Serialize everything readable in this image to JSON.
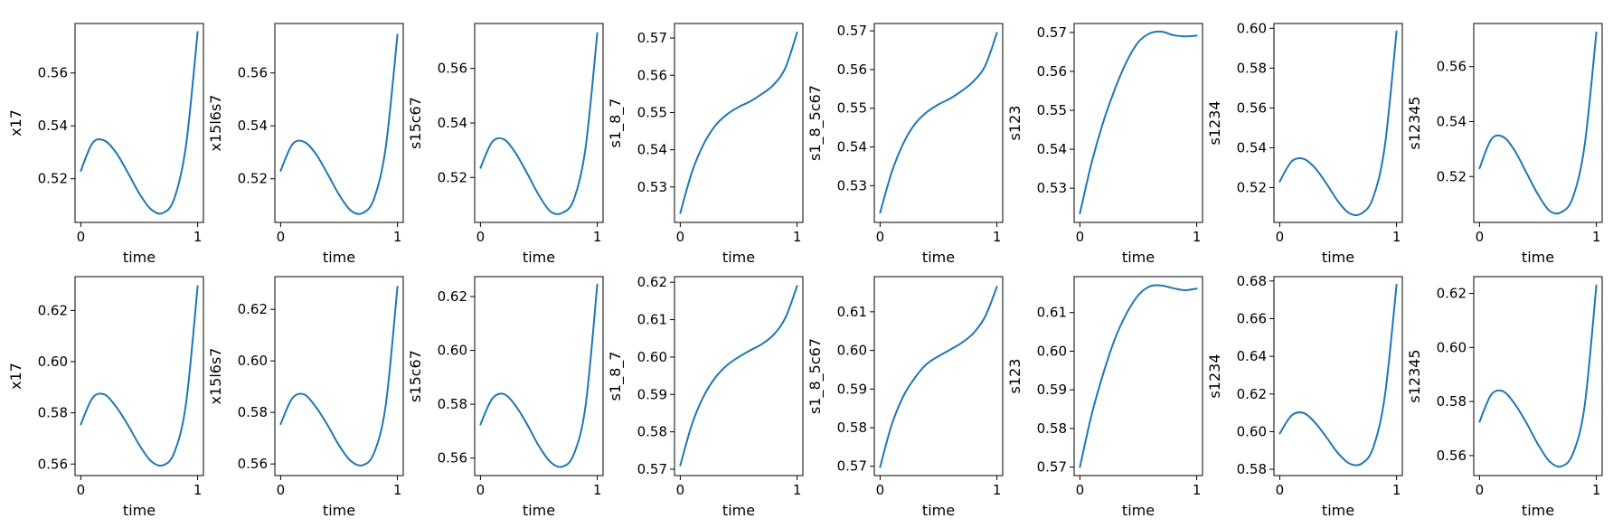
{
  "figure": {
    "line_color": "#1f77b4",
    "axes_color": "#000000",
    "background": "#ffffff"
  },
  "chart_data": [
    {
      "type": "line",
      "ylabel": "x17",
      "xlabel": "time",
      "xlim": [
        0,
        1
      ],
      "ylim": [
        0.5035,
        0.5787
      ],
      "xticks": [
        0,
        1
      ],
      "yticks": [
        0.52,
        0.54,
        0.56
      ],
      "x": [
        0,
        0.1,
        0.2,
        0.3,
        0.4,
        0.5,
        0.6,
        0.7,
        0.8,
        0.9,
        1.0
      ],
      "values": [
        0.523,
        0.5335,
        0.5345,
        0.53,
        0.5225,
        0.5145,
        0.5085,
        0.507,
        0.5125,
        0.5325,
        0.5755
      ]
    },
    {
      "type": "line",
      "ylabel": "x15l6s7",
      "xlabel": "time",
      "xlim": [
        0,
        1
      ],
      "ylim": [
        0.5035,
        0.5787
      ],
      "xticks": [
        0,
        1
      ],
      "yticks": [
        0.52,
        0.54,
        0.56
      ],
      "x": [
        0,
        0.1,
        0.2,
        0.3,
        0.4,
        0.5,
        0.6,
        0.7,
        0.8,
        0.9,
        1.0
      ],
      "values": [
        0.523,
        0.533,
        0.534,
        0.5295,
        0.522,
        0.514,
        0.508,
        0.507,
        0.5125,
        0.532,
        0.5745
      ]
    },
    {
      "type": "line",
      "ylabel": "s15c67",
      "xlabel": "time",
      "xlim": [
        0,
        1
      ],
      "ylim": [
        0.5035,
        0.5765
      ],
      "xticks": [
        0,
        1
      ],
      "yticks": [
        0.52,
        0.54,
        0.56
      ],
      "x": [
        0,
        0.1,
        0.2,
        0.3,
        0.4,
        0.5,
        0.6,
        0.7,
        0.8,
        0.9,
        1.0
      ],
      "values": [
        0.5235,
        0.533,
        0.534,
        0.529,
        0.5215,
        0.5135,
        0.5075,
        0.507,
        0.512,
        0.531,
        0.573
      ]
    },
    {
      "type": "line",
      "ylabel": "s1_8_7",
      "xlabel": "time",
      "xlim": [
        0,
        1
      ],
      "ylim": [
        0.5205,
        0.5739
      ],
      "xticks": [
        0,
        1
      ],
      "yticks": [
        0.53,
        0.54,
        0.55,
        0.56,
        0.57
      ],
      "x": [
        0,
        0.1,
        0.2,
        0.3,
        0.4,
        0.5,
        0.6,
        0.7,
        0.8,
        0.9,
        1.0
      ],
      "values": [
        0.523,
        0.534,
        0.5415,
        0.5465,
        0.5495,
        0.5515,
        0.553,
        0.555,
        0.5575,
        0.562,
        0.5715
      ]
    },
    {
      "type": "line",
      "ylabel": "s1_8_5c67",
      "xlabel": "time",
      "xlim": [
        0,
        1
      ],
      "ylim": [
        0.5205,
        0.5719
      ],
      "xticks": [
        0,
        1
      ],
      "yticks": [
        0.53,
        0.54,
        0.55,
        0.56,
        0.57
      ],
      "x": [
        0,
        0.1,
        0.2,
        0.3,
        0.4,
        0.5,
        0.6,
        0.7,
        0.8,
        0.9,
        1.0
      ],
      "values": [
        0.523,
        0.5335,
        0.541,
        0.546,
        0.549,
        0.551,
        0.5525,
        0.5545,
        0.557,
        0.561,
        0.5695
      ]
    },
    {
      "type": "line",
      "ylabel": "s123",
      "xlabel": "time",
      "xlim": [
        0,
        1
      ],
      "ylim": [
        0.5212,
        0.5723
      ],
      "xticks": [
        0,
        1
      ],
      "yticks": [
        0.53,
        0.54,
        0.55,
        0.56,
        0.57
      ],
      "x": [
        0,
        0.1,
        0.2,
        0.3,
        0.4,
        0.5,
        0.6,
        0.7,
        0.8,
        0.9,
        1.0
      ],
      "values": [
        0.5235,
        0.5365,
        0.547,
        0.5555,
        0.5625,
        0.5675,
        0.5698,
        0.5702,
        0.5693,
        0.569,
        0.5692
      ]
    },
    {
      "type": "line",
      "ylabel": "s1234",
      "xlabel": "time",
      "xlim": [
        0,
        1
      ],
      "ylim": [
        0.5025,
        0.6024
      ],
      "xticks": [
        0,
        1
      ],
      "yticks": [
        0.52,
        0.54,
        0.56,
        0.58,
        0.6
      ],
      "x": [
        0,
        0.1,
        0.2,
        0.3,
        0.4,
        0.5,
        0.6,
        0.7,
        0.8,
        0.9,
        1.0
      ],
      "values": [
        0.523,
        0.533,
        0.5345,
        0.53,
        0.522,
        0.513,
        0.507,
        0.507,
        0.515,
        0.541,
        0.5985
      ]
    },
    {
      "type": "line",
      "ylabel": "s12345",
      "xlabel": "time",
      "xlim": [
        0,
        1
      ],
      "ylim": [
        0.5033,
        0.5757
      ],
      "xticks": [
        0,
        1
      ],
      "yticks": [
        0.52,
        0.54,
        0.56
      ],
      "x": [
        0,
        0.1,
        0.2,
        0.3,
        0.4,
        0.5,
        0.6,
        0.7,
        0.8,
        0.9,
        1.0
      ],
      "values": [
        0.523,
        0.5335,
        0.5345,
        0.5295,
        0.5215,
        0.5135,
        0.5075,
        0.507,
        0.5125,
        0.5315,
        0.5725
      ]
    },
    {
      "type": "line",
      "ylabel": "x17",
      "xlabel": "time",
      "xlim": [
        0,
        1
      ],
      "ylim": [
        0.5555,
        0.6332
      ],
      "xticks": [
        0,
        1
      ],
      "yticks": [
        0.56,
        0.58,
        0.6,
        0.62
      ],
      "x": [
        0,
        0.1,
        0.2,
        0.3,
        0.4,
        0.5,
        0.6,
        0.7,
        0.8,
        0.9,
        1.0
      ],
      "values": [
        0.5755,
        0.5858,
        0.5872,
        0.5825,
        0.5755,
        0.5675,
        0.5612,
        0.5595,
        0.5645,
        0.5835,
        0.6295
      ]
    },
    {
      "type": "line",
      "ylabel": "x15l6s7",
      "xlabel": "time",
      "xlim": [
        0,
        1
      ],
      "ylim": [
        0.5555,
        0.6327
      ],
      "xticks": [
        0,
        1
      ],
      "yticks": [
        0.56,
        0.58,
        0.6,
        0.62
      ],
      "x": [
        0,
        0.1,
        0.2,
        0.3,
        0.4,
        0.5,
        0.6,
        0.7,
        0.8,
        0.9,
        1.0
      ],
      "values": [
        0.5755,
        0.5855,
        0.587,
        0.5822,
        0.5752,
        0.5672,
        0.5612,
        0.5595,
        0.5643,
        0.583,
        0.6288
      ]
    },
    {
      "type": "line",
      "ylabel": "s15c67",
      "xlabel": "time",
      "xlim": [
        0,
        1
      ],
      "ylim": [
        0.5535,
        0.6274
      ],
      "xticks": [
        0,
        1
      ],
      "yticks": [
        0.56,
        0.58,
        0.6,
        0.62
      ],
      "x": [
        0,
        0.1,
        0.2,
        0.3,
        0.4,
        0.5,
        0.6,
        0.7,
        0.8,
        0.9,
        1.0
      ],
      "values": [
        0.5725,
        0.582,
        0.5838,
        0.5795,
        0.5725,
        0.5645,
        0.5585,
        0.5568,
        0.5615,
        0.5795,
        0.6245
      ]
    },
    {
      "type": "line",
      "ylabel": "s1_8_7",
      "xlabel": "time",
      "xlim": [
        0,
        1
      ],
      "ylim": [
        0.5683,
        0.6215
      ],
      "xticks": [
        0,
        1
      ],
      "yticks": [
        0.57,
        0.58,
        0.59,
        0.6,
        0.61,
        0.62
      ],
      "x": [
        0,
        0.1,
        0.2,
        0.3,
        0.4,
        0.5,
        0.6,
        0.7,
        0.8,
        0.9,
        1.0
      ],
      "values": [
        0.571,
        0.582,
        0.5895,
        0.5945,
        0.5978,
        0.6,
        0.6018,
        0.6035,
        0.606,
        0.6105,
        0.619
      ]
    },
    {
      "type": "line",
      "ylabel": "s1_8_5c67",
      "xlabel": "time",
      "xlim": [
        0,
        1
      ],
      "ylim": [
        0.5676,
        0.6191
      ],
      "xticks": [
        0,
        1
      ],
      "yticks": [
        0.57,
        0.58,
        0.59,
        0.6,
        0.61
      ],
      "x": [
        0,
        0.1,
        0.2,
        0.3,
        0.4,
        0.5,
        0.6,
        0.7,
        0.8,
        0.9,
        1.0
      ],
      "values": [
        0.5698,
        0.5808,
        0.5882,
        0.593,
        0.5965,
        0.5985,
        0.6002,
        0.602,
        0.6045,
        0.6088,
        0.6165
      ]
    },
    {
      "type": "line",
      "ylabel": "s123",
      "xlabel": "time",
      "xlim": [
        0,
        1
      ],
      "ylim": [
        0.5678,
        0.6193
      ],
      "xticks": [
        0,
        1
      ],
      "yticks": [
        0.57,
        0.58,
        0.59,
        0.6,
        0.61
      ],
      "x": [
        0,
        0.1,
        0.2,
        0.3,
        0.4,
        0.5,
        0.6,
        0.7,
        0.8,
        0.9,
        1.0
      ],
      "values": [
        0.57,
        0.5835,
        0.5942,
        0.6032,
        0.6098,
        0.6145,
        0.6168,
        0.617,
        0.6163,
        0.6158,
        0.6162
      ]
    },
    {
      "type": "line",
      "ylabel": "s1234",
      "xlabel": "time",
      "xlim": [
        0,
        1
      ],
      "ylim": [
        0.5767,
        0.6823
      ],
      "xticks": [
        0,
        1
      ],
      "yticks": [
        0.58,
        0.6,
        0.62,
        0.64,
        0.66,
        0.68
      ],
      "x": [
        0,
        0.1,
        0.2,
        0.3,
        0.4,
        0.5,
        0.6,
        0.7,
        0.8,
        0.9,
        1.0
      ],
      "values": [
        0.599,
        0.6085,
        0.61,
        0.605,
        0.597,
        0.5885,
        0.583,
        0.583,
        0.5915,
        0.619,
        0.678
      ]
    },
    {
      "type": "line",
      "ylabel": "s12345",
      "xlabel": "time",
      "xlim": [
        0,
        1
      ],
      "ylim": [
        0.5526,
        0.6262
      ],
      "xticks": [
        0,
        1
      ],
      "yticks": [
        0.56,
        0.58,
        0.6,
        0.62
      ],
      "x": [
        0,
        0.1,
        0.2,
        0.3,
        0.4,
        0.5,
        0.6,
        0.7,
        0.8,
        0.9,
        1.0
      ],
      "values": [
        0.5725,
        0.5825,
        0.5838,
        0.5792,
        0.5722,
        0.5642,
        0.5578,
        0.556,
        0.5608,
        0.5785,
        0.623
      ]
    }
  ]
}
